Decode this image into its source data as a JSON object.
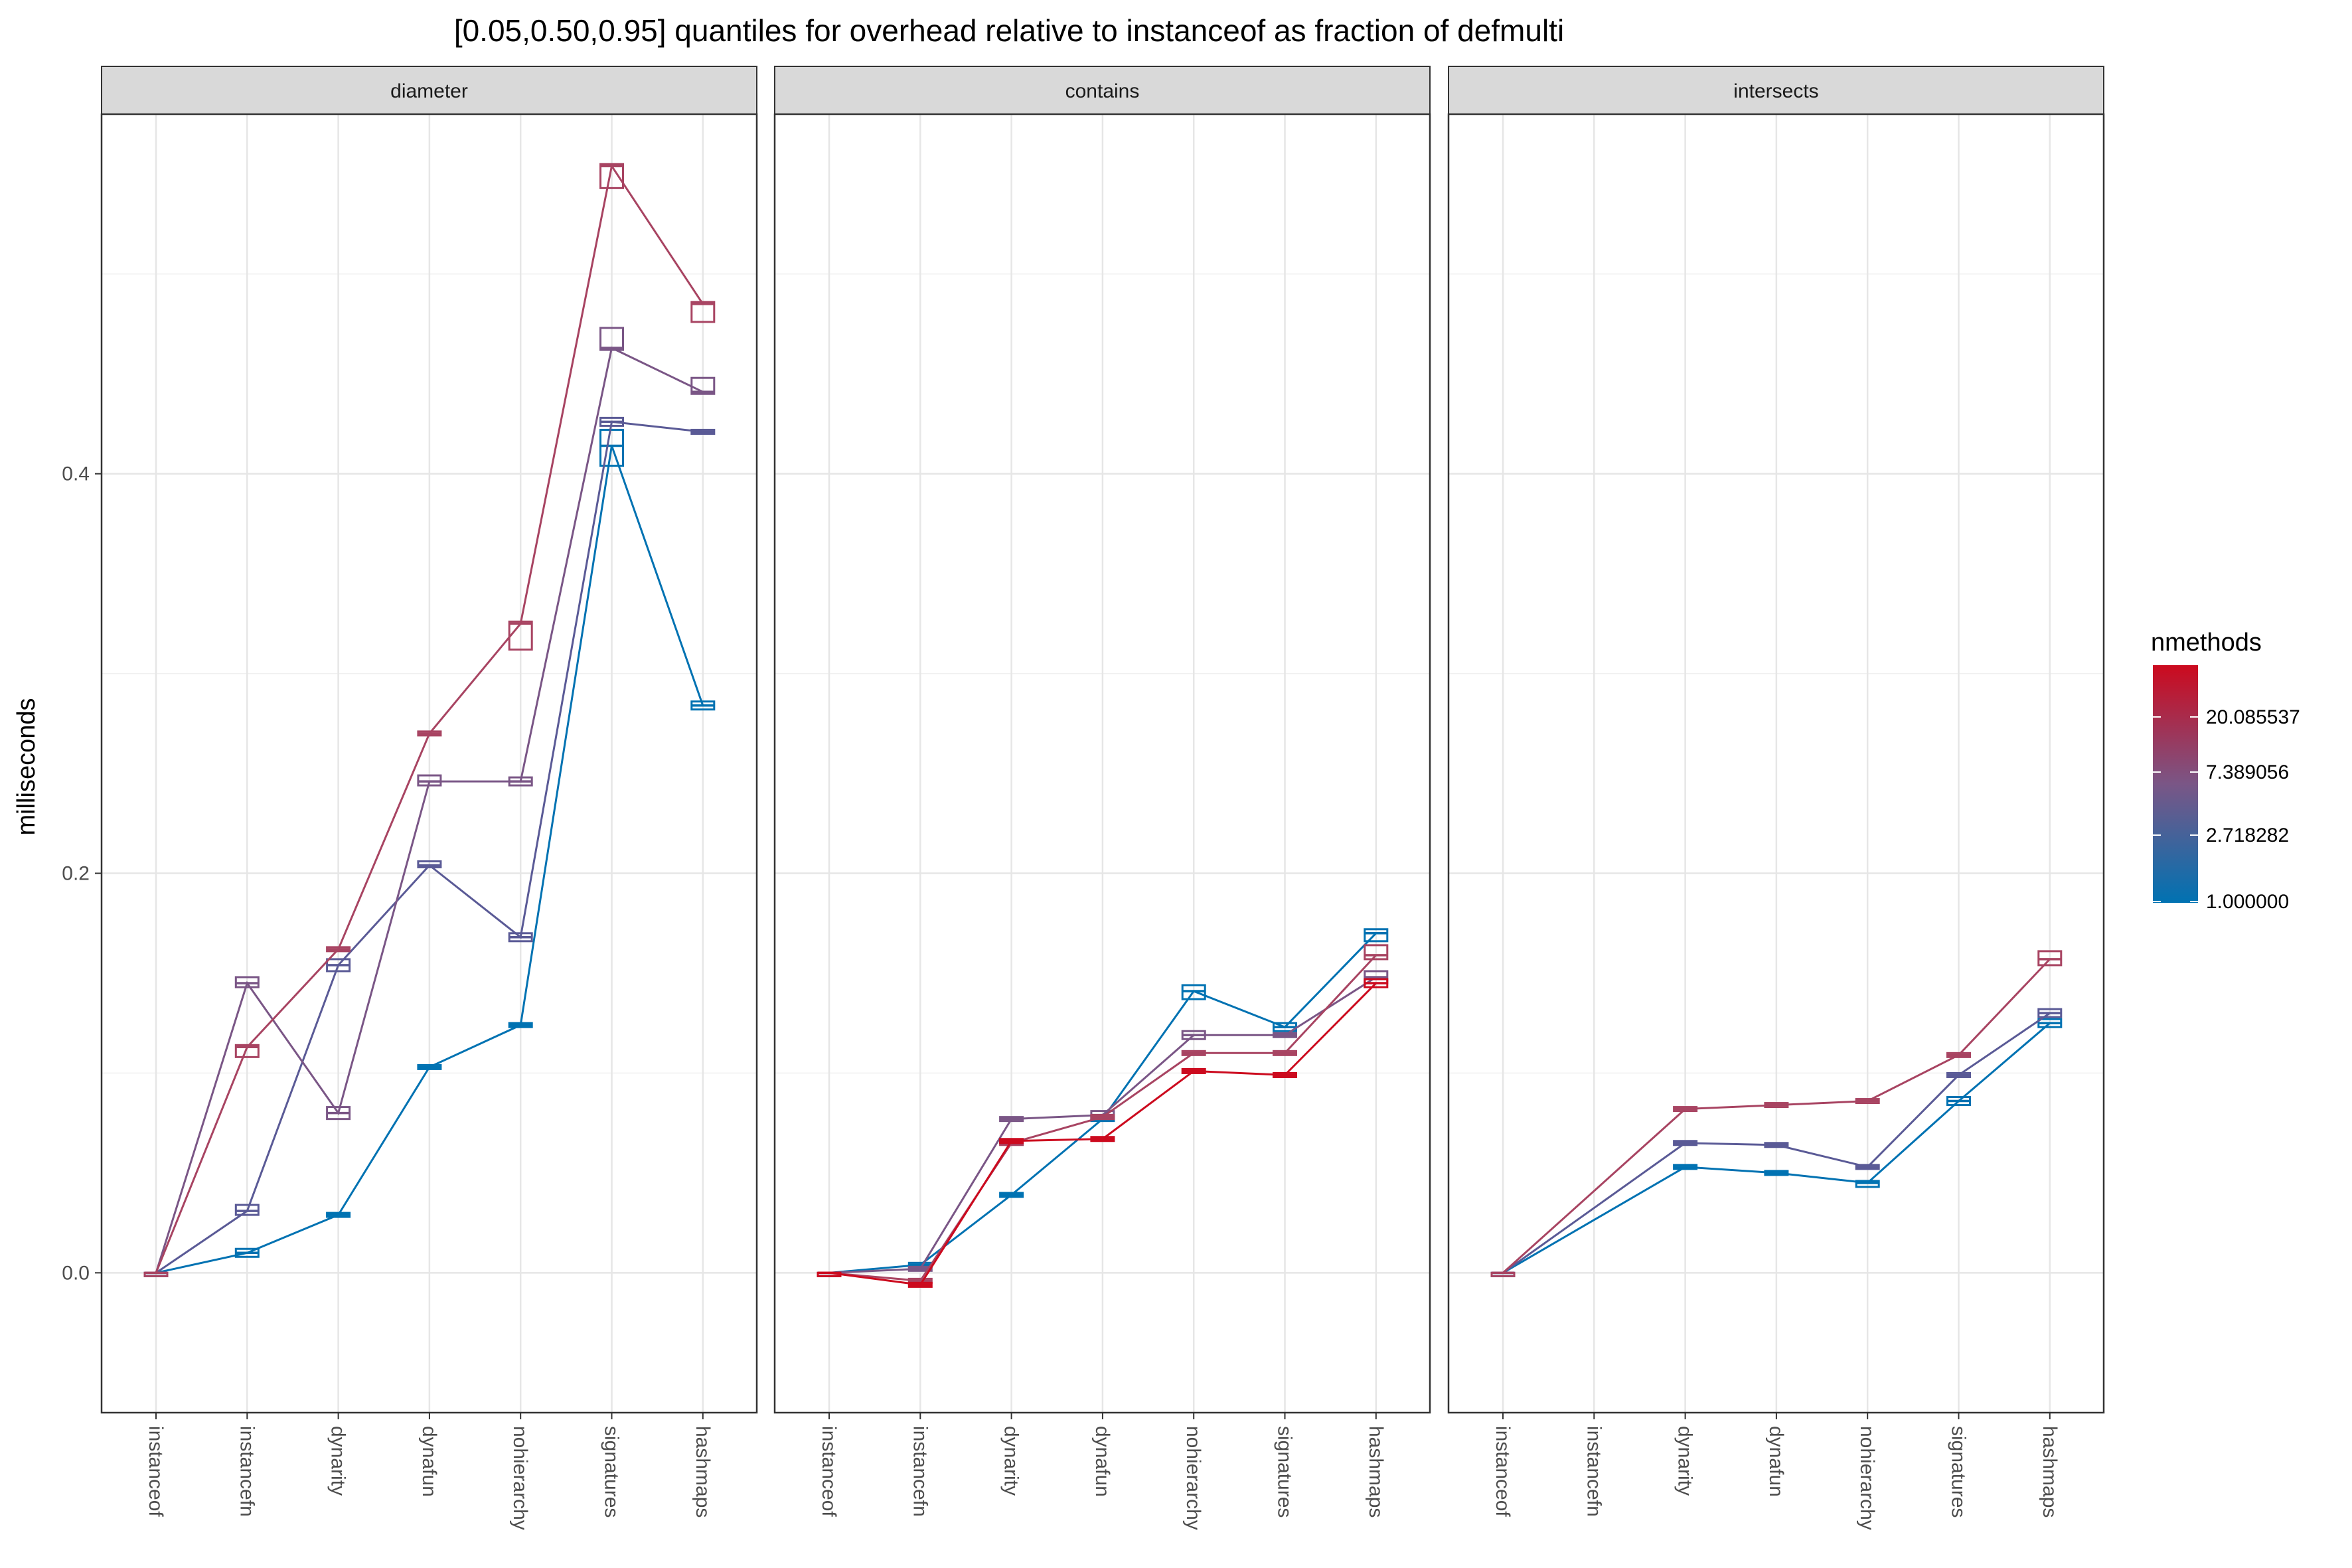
{
  "chart_data": {
    "type": "line",
    "title": "[0.05,0.50,0.95] quantiles for overhead relative to instanceof as fraction of defmulti",
    "ylabel": "milliseconds",
    "xlabel": "",
    "ylim": [
      -0.07,
      0.58
    ],
    "yticks": [
      0.0,
      0.2,
      0.4
    ],
    "ytick_labels": [
      "0.0",
      "0.2",
      "0.4"
    ],
    "categories": [
      "instanceof",
      "instancefn",
      "dynarity",
      "dynafun",
      "nohierarchy",
      "signatures",
      "hashmaps"
    ],
    "grid": true,
    "legend": {
      "title": "nmethods",
      "position": "right",
      "type": "gradient",
      "low_color": "#0072b2",
      "high_color": "#cc0a1e",
      "breaks": [
        "20.085537",
        "7.389056",
        "2.718282",
        "1.000000"
      ]
    },
    "panels": [
      {
        "name": "diameter",
        "series": [
          {
            "color": "#0072b2",
            "values": [
              0.0,
              0.01,
              0.029,
              0.103,
              0.124,
              0.414,
              0.284
            ],
            "lo": [
              0.0,
              0.008,
              0.028,
              0.102,
              0.123,
              0.404,
              0.282
            ],
            "hi": [
              0.0,
              0.012,
              0.03,
              0.104,
              0.125,
              0.422,
              0.286
            ]
          },
          {
            "color": "#5a5a96",
            "values": [
              0.0,
              0.031,
              0.154,
              0.204,
              0.168,
              0.426,
              0.421
            ],
            "lo": [
              0.0,
              0.029,
              0.151,
              0.203,
              0.166,
              0.424,
              0.42
            ],
            "hi": [
              0.0,
              0.034,
              0.157,
              0.206,
              0.17,
              0.428,
              0.422
            ]
          },
          {
            "color": "#7a5686",
            "values": [
              0.0,
              0.145,
              0.08,
              0.246,
              0.246,
              0.463,
              0.441
            ],
            "lo": [
              0.0,
              0.143,
              0.077,
              0.244,
              0.244,
              0.462,
              0.44
            ],
            "hi": [
              0.0,
              0.148,
              0.083,
              0.249,
              0.248,
              0.473,
              0.448
            ]
          },
          {
            "color": "#a84462",
            "values": [
              0.0,
              0.113,
              0.162,
              0.27,
              0.325,
              0.554,
              0.485
            ],
            "lo": [
              0.0,
              0.108,
              0.161,
              0.269,
              0.312,
              0.543,
              0.476
            ],
            "hi": [
              0.0,
              0.114,
              0.163,
              0.271,
              0.326,
              0.555,
              0.486
            ]
          }
        ]
      },
      {
        "name": "contains",
        "series": [
          {
            "color": "#0072b2",
            "values": [
              0.0,
              0.004,
              0.039,
              0.077,
              0.141,
              0.123,
              0.17
            ],
            "lo": [
              0.0,
              0.003,
              0.038,
              0.076,
              0.137,
              0.121,
              0.166
            ],
            "hi": [
              0.0,
              0.005,
              0.04,
              0.078,
              0.144,
              0.125,
              0.172
            ]
          },
          {
            "color": "#7a5686",
            "values": [
              0.0,
              0.002,
              0.077,
              0.079,
              0.119,
              0.119,
              0.148
            ],
            "lo": [
              0.0,
              0.001,
              0.076,
              0.077,
              0.117,
              0.118,
              0.145
            ],
            "hi": [
              0.0,
              0.003,
              0.078,
              0.081,
              0.121,
              0.12,
              0.151
            ]
          },
          {
            "color": "#a84462",
            "values": [
              0.0,
              -0.004,
              0.065,
              0.078,
              0.11,
              0.11,
              0.159
            ],
            "lo": [
              0.0,
              -0.005,
              0.064,
              0.077,
              0.109,
              0.109,
              0.157
            ],
            "hi": [
              0.0,
              -0.003,
              0.066,
              0.079,
              0.111,
              0.111,
              0.164
            ]
          },
          {
            "color": "#cc0a1e",
            "values": [
              0.0,
              -0.006,
              0.066,
              0.067,
              0.101,
              0.099,
              0.145
            ],
            "lo": [
              0.0,
              -0.007,
              0.065,
              0.066,
              0.1,
              0.098,
              0.143
            ],
            "hi": [
              0.0,
              -0.005,
              0.067,
              0.068,
              0.102,
              0.1,
              0.147
            ]
          }
        ]
      },
      {
        "name": "intersects",
        "series": [
          {
            "color": "#0072b2",
            "values": [
              0.0,
              null,
              0.053,
              0.05,
              0.045,
              0.086,
              0.125
            ],
            "lo": [
              0.0,
              null,
              0.052,
              0.049,
              0.043,
              0.084,
              0.123
            ],
            "hi": [
              0.0,
              null,
              0.054,
              0.051,
              0.046,
              0.088,
              0.127
            ]
          },
          {
            "color": "#5a5a96",
            "values": [
              0.0,
              null,
              0.065,
              0.064,
              0.053,
              0.099,
              0.13
            ],
            "lo": [
              0.0,
              null,
              0.064,
              0.063,
              0.052,
              0.098,
              0.128
            ],
            "hi": [
              0.0,
              null,
              0.066,
              0.065,
              0.054,
              0.1,
              0.132
            ]
          },
          {
            "color": "#a84462",
            "values": [
              0.0,
              null,
              0.082,
              0.084,
              0.086,
              0.109,
              0.157
            ],
            "lo": [
              0.0,
              null,
              0.081,
              0.083,
              0.085,
              0.108,
              0.154
            ],
            "hi": [
              0.0,
              null,
              0.083,
              0.085,
              0.087,
              0.11,
              0.161
            ]
          }
        ]
      }
    ]
  }
}
